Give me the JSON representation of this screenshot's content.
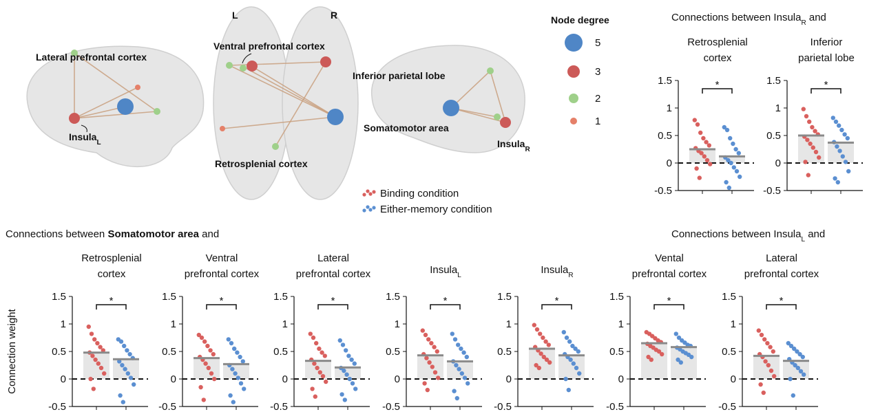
{
  "network": {
    "hemispheres": [
      "L",
      "R"
    ],
    "regions": [
      {
        "label": "Lateral prefrontal cortex"
      },
      {
        "label": "Insula",
        "sub": "L"
      },
      {
        "label": "Ventral prefrontal cortex"
      },
      {
        "label": "Retrosplenial cortex"
      },
      {
        "label": "Inferior parietal lobe"
      },
      {
        "label": "Somatomotor area"
      },
      {
        "label": "Insula",
        "sub": "R"
      }
    ]
  },
  "node_degree": {
    "title": "Node degree",
    "items": [
      {
        "value": 5,
        "color": "#4f86c6"
      },
      {
        "value": 3,
        "color": "#cc5a58"
      },
      {
        "value": 2,
        "color": "#9fd08a"
      },
      {
        "value": 1,
        "color": "#e58069"
      }
    ]
  },
  "conditions": [
    {
      "name": "Binding condition",
      "color": "#d9605e"
    },
    {
      "name": "Either-memory condition",
      "color": "#5b8fd1"
    }
  ],
  "groups": [
    {
      "parts": [
        {
          "text": "Connections between Insula"
        },
        {
          "text": "R",
          "style": "sub"
        },
        {
          "text": " and"
        }
      ]
    },
    {
      "parts": [
        {
          "text": "Connections between "
        },
        {
          "text": "Somatomotor area",
          "style": "bold"
        },
        {
          "text": " and"
        }
      ]
    },
    {
      "parts": [
        {
          "text": "Connections between Insula"
        },
        {
          "text": "L",
          "style": "sub"
        },
        {
          "text": " and"
        }
      ]
    }
  ],
  "chart_data": [
    {
      "type": "bar",
      "title": [
        "Retrosplenial",
        "cortex"
      ],
      "ylim": [
        -0.5,
        1.5
      ],
      "yticks": [
        -0.5,
        0,
        0.5,
        1,
        1.5
      ],
      "values": [
        0.25,
        0.12
      ],
      "significance": "*",
      "points": [
        [
          0.78,
          0.7,
          0.55,
          0.45,
          0.38,
          0.32,
          0.27,
          0.22,
          0.18,
          0.12,
          0.05,
          -0.02,
          -0.1,
          -0.27
        ],
        [
          0.65,
          0.6,
          0.45,
          0.35,
          0.25,
          0.18,
          0.1,
          0.05,
          0,
          -0.08,
          -0.15,
          -0.25,
          -0.35,
          -0.45
        ]
      ]
    },
    {
      "type": "bar",
      "title": [
        "Inferior",
        "parietal lobe"
      ],
      "ylim": [
        -0.5,
        1.5
      ],
      "yticks": [
        -0.5,
        0,
        0.5,
        1,
        1.5
      ],
      "values": [
        0.5,
        0.37
      ],
      "significance": "*",
      "points": [
        [
          0.98,
          0.85,
          0.75,
          0.65,
          0.58,
          0.52,
          0.48,
          0.42,
          0.35,
          0.28,
          0.2,
          0.1,
          0.02,
          -0.22
        ],
        [
          0.82,
          0.75,
          0.68,
          0.6,
          0.52,
          0.45,
          0.38,
          0.3,
          0.22,
          0.12,
          0.02,
          -0.15,
          -0.28,
          -0.35
        ]
      ]
    },
    {
      "type": "bar",
      "title": [
        "Retrosplenial",
        "cortex"
      ],
      "y_label": "Connection weight",
      "ylim": [
        -0.5,
        1.5
      ],
      "yticks": [
        -0.5,
        0,
        0.5,
        1,
        1.5
      ],
      "values": [
        0.48,
        0.36
      ],
      "significance": "*",
      "points": [
        [
          0.95,
          0.82,
          0.72,
          0.65,
          0.58,
          0.52,
          0.48,
          0.42,
          0.35,
          0.28,
          0.2,
          0.1,
          0,
          -0.18
        ],
        [
          0.72,
          0.68,
          0.6,
          0.52,
          0.45,
          0.38,
          0.32,
          0.25,
          0.18,
          0.1,
          0.02,
          -0.1,
          -0.3,
          -0.42
        ]
      ]
    },
    {
      "type": "bar",
      "title": [
        "Ventral",
        "prefrontal cortex"
      ],
      "ylim": [
        -0.5,
        1.5
      ],
      "yticks": [
        -0.5,
        0,
        0.5,
        1,
        1.5
      ],
      "values": [
        0.38,
        0.27
      ],
      "significance": "*",
      "points": [
        [
          0.8,
          0.75,
          0.68,
          0.6,
          0.52,
          0.45,
          0.4,
          0.35,
          0.28,
          0.2,
          0.1,
          0,
          -0.15,
          -0.38
        ],
        [
          0.72,
          0.65,
          0.55,
          0.48,
          0.4,
          0.32,
          0.25,
          0.18,
          0.1,
          0.02,
          -0.08,
          -0.18,
          -0.3,
          -0.42
        ]
      ]
    },
    {
      "type": "bar",
      "title": [
        "Lateral",
        "prefrontal cortex"
      ],
      "ylim": [
        -0.5,
        1.5
      ],
      "yticks": [
        -0.5,
        0,
        0.5,
        1,
        1.5
      ],
      "values": [
        0.33,
        0.21
      ],
      "significance": "*",
      "points": [
        [
          0.82,
          0.75,
          0.65,
          0.55,
          0.48,
          0.42,
          0.35,
          0.28,
          0.2,
          0.12,
          0.05,
          -0.05,
          -0.18,
          -0.32
        ],
        [
          0.7,
          0.62,
          0.52,
          0.42,
          0.35,
          0.28,
          0.2,
          0.15,
          0.08,
          0,
          -0.08,
          -0.18,
          -0.28,
          -0.38
        ]
      ]
    },
    {
      "type": "bar",
      "title": [
        "Insula"
      ],
      "title_sub": "L",
      "ylim": [
        -0.5,
        1.5
      ],
      "yticks": [
        -0.5,
        0,
        0.5,
        1,
        1.5
      ],
      "values": [
        0.43,
        0.32
      ],
      "significance": "*",
      "points": [
        [
          0.88,
          0.8,
          0.72,
          0.65,
          0.58,
          0.5,
          0.45,
          0.38,
          0.3,
          0.22,
          0.12,
          0.02,
          -0.08,
          -0.2
        ],
        [
          0.82,
          0.72,
          0.62,
          0.55,
          0.48,
          0.4,
          0.32,
          0.25,
          0.18,
          0.1,
          0.02,
          -0.08,
          -0.22,
          -0.35
        ]
      ]
    },
    {
      "type": "bar",
      "title": [
        "Insula"
      ],
      "title_sub": "R",
      "ylim": [
        -0.5,
        1.5
      ],
      "yticks": [
        -0.5,
        0,
        0.5,
        1,
        1.5
      ],
      "values": [
        0.55,
        0.43
      ],
      "significance": "*",
      "points": [
        [
          0.98,
          0.9,
          0.82,
          0.75,
          0.68,
          0.62,
          0.58,
          0.52,
          0.46,
          0.4,
          0.35,
          0.3,
          0.25,
          0.2
        ],
        [
          0.85,
          0.75,
          0.68,
          0.6,
          0.55,
          0.5,
          0.45,
          0.4,
          0.35,
          0.28,
          0.2,
          0.1,
          0,
          -0.2
        ]
      ]
    },
    {
      "type": "bar",
      "title": [
        "Vental",
        "prefrontal cortex"
      ],
      "ylim": [
        -0.5,
        1.5
      ],
      "yticks": [
        -0.5,
        0,
        0.5,
        1,
        1.5
      ],
      "values": [
        0.65,
        0.58
      ],
      "significance": "*",
      "points": [
        [
          0.85,
          0.82,
          0.78,
          0.74,
          0.7,
          0.67,
          0.64,
          0.6,
          0.57,
          0.53,
          0.5,
          0.45,
          0.4,
          0.35
        ],
        [
          0.82,
          0.75,
          0.7,
          0.66,
          0.62,
          0.6,
          0.57,
          0.54,
          0.5,
          0.47,
          0.44,
          0.4,
          0.35,
          0.3
        ]
      ]
    },
    {
      "type": "bar",
      "title": [
        "Lateral",
        "prefrontal cortex"
      ],
      "ylim": [
        -0.5,
        1.5
      ],
      "yticks": [
        -0.5,
        0,
        0.5,
        1,
        1.5
      ],
      "values": [
        0.42,
        0.33
      ],
      "significance": "*",
      "points": [
        [
          0.88,
          0.8,
          0.72,
          0.65,
          0.58,
          0.5,
          0.45,
          0.4,
          0.32,
          0.25,
          0.15,
          0.05,
          -0.1,
          -0.25
        ],
        [
          0.65,
          0.6,
          0.55,
          0.5,
          0.45,
          0.4,
          0.36,
          0.3,
          0.25,
          0.2,
          0.14,
          0.08,
          0,
          -0.3
        ]
      ]
    }
  ]
}
